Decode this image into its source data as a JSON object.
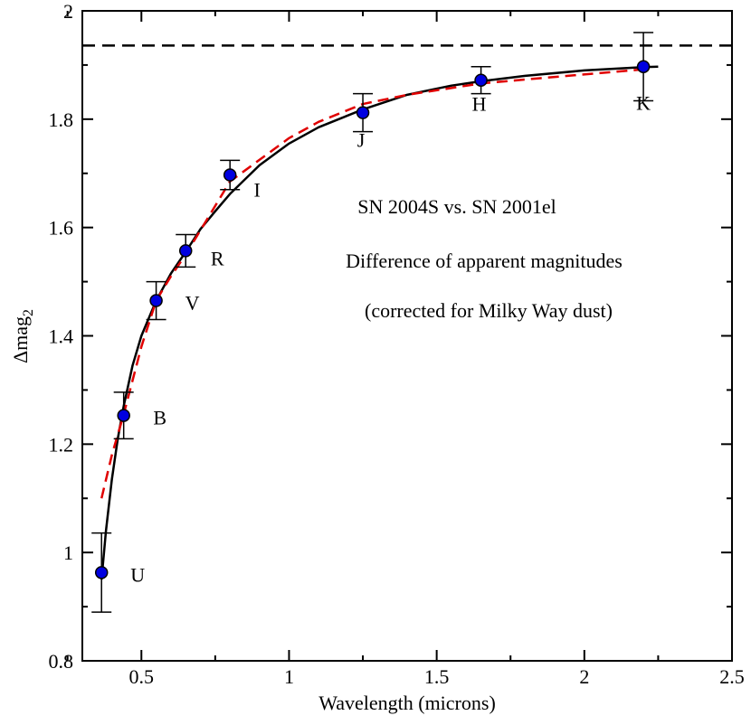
{
  "chart_data": {
    "type": "scatter",
    "xlabel": "Wavelength (microns)",
    "ylabel": {
      "base": "Δmag",
      "subscript": "2"
    },
    "xlim": [
      0.3,
      2.5
    ],
    "ylim": [
      0.8,
      2.0
    ],
    "xticks": [
      {
        "value": 0.5,
        "label": "0.5"
      },
      {
        "value": 1.0,
        "label": "1"
      },
      {
        "value": 1.5,
        "label": "1.5"
      },
      {
        "value": 2.0,
        "label": "2"
      },
      {
        "value": 2.5,
        "label": "2.5"
      }
    ],
    "yticks": [
      {
        "value": 0.8,
        "label": "0.8"
      },
      {
        "value": 1.0,
        "label": "1"
      },
      {
        "value": 1.2,
        "label": "1.2"
      },
      {
        "value": 1.4,
        "label": "1.4"
      },
      {
        "value": 1.6,
        "label": "1.6"
      },
      {
        "value": 1.8,
        "label": "1.8"
      },
      {
        "value": 2.0,
        "label": "2"
      }
    ],
    "points": [
      {
        "band": "U",
        "x": 0.365,
        "y": 0.963,
        "err": 0.073
      },
      {
        "band": "B",
        "x": 0.44,
        "y": 1.253,
        "err": 0.043
      },
      {
        "band": "V",
        "x": 0.55,
        "y": 1.465,
        "err": 0.035
      },
      {
        "band": "R",
        "x": 0.65,
        "y": 1.557,
        "err": 0.03
      },
      {
        "band": "I",
        "x": 0.8,
        "y": 1.697,
        "err": 0.027
      },
      {
        "band": "J",
        "x": 1.25,
        "y": 1.812,
        "err": 0.035
      },
      {
        "band": "H",
        "x": 1.65,
        "y": 1.872,
        "err": 0.025
      },
      {
        "band": "K",
        "x": 2.2,
        "y": 1.897,
        "err": 0.063
      }
    ],
    "series": [
      {
        "name": "solid-fit",
        "color": "#000000",
        "style": "solid",
        "x": [
          0.365,
          0.38,
          0.4,
          0.42,
          0.44,
          0.47,
          0.5,
          0.55,
          0.6,
          0.65,
          0.7,
          0.75,
          0.8,
          0.9,
          1.0,
          1.1,
          1.25,
          1.4,
          1.55,
          1.65,
          1.8,
          2.0,
          2.2,
          2.25
        ],
        "y": [
          0.95,
          1.04,
          1.135,
          1.21,
          1.27,
          1.345,
          1.4,
          1.465,
          1.515,
          1.555,
          1.597,
          1.63,
          1.662,
          1.715,
          1.755,
          1.785,
          1.818,
          1.845,
          1.862,
          1.87,
          1.88,
          1.89,
          1.896,
          1.897
        ]
      },
      {
        "name": "dashed-fit",
        "color": "#e00000",
        "style": "dashed",
        "x": [
          0.365,
          0.4,
          0.44,
          0.5,
          0.55,
          0.6,
          0.65,
          0.7,
          0.8,
          0.9,
          1.0,
          1.1,
          1.25,
          1.4,
          1.65,
          1.9,
          2.2
        ],
        "y": [
          1.1,
          1.18,
          1.255,
          1.38,
          1.465,
          1.51,
          1.55,
          1.595,
          1.685,
          1.725,
          1.765,
          1.795,
          1.828,
          1.845,
          1.866,
          1.878,
          1.892
        ]
      }
    ],
    "reference_line": {
      "y": 1.936,
      "color": "#000000",
      "style": "dashed"
    },
    "annotations": [
      "SN 2004S vs. SN 2001el",
      "Difference of apparent magnitudes",
      "(corrected for Milky Way dust)"
    ],
    "marker_color": "#0000e0"
  }
}
